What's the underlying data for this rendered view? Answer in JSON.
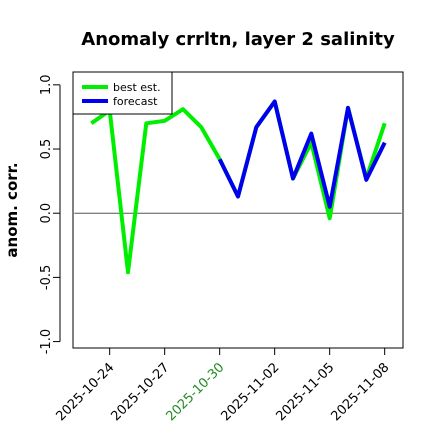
{
  "chart_data": {
    "type": "line",
    "title": "Anomaly crrltn, layer 2 salinity",
    "ylabel": "anom. corr.",
    "xlabel": "",
    "ylim": [
      -1.05,
      1.1
    ],
    "xlim": [
      "2025-10-22",
      "2025-11-09"
    ],
    "yticks": [
      "-1.0",
      "-0.5",
      "0.0",
      "0.5",
      "1.0"
    ],
    "ytick_values": [
      -1.0,
      -0.5,
      0.0,
      0.5,
      1.0
    ],
    "xticks": [
      "2025-10-24",
      "2025-10-27",
      "2025-10-30",
      "2025-11-02",
      "2025-11-05",
      "2025-11-08"
    ],
    "xtick_colors": [
      "#000000",
      "#000000",
      "#228b22",
      "#000000",
      "#000000",
      "#000000"
    ],
    "reference_line": 0.0,
    "legend": {
      "position": "top-left",
      "entries": [
        "best est.",
        "forecast"
      ]
    },
    "series": [
      {
        "name": "best est.",
        "color": "#00ee00",
        "x": [
          "2025-10-23",
          "2025-10-24",
          "2025-10-25",
          "2025-10-26",
          "2025-10-27",
          "2025-10-28",
          "2025-10-29",
          "2025-10-30",
          "2025-10-31",
          "2025-11-01",
          "2025-11-02",
          "2025-11-03",
          "2025-11-04",
          "2025-11-05",
          "2025-11-06",
          "2025-11-07",
          "2025-11-08"
        ],
        "values": [
          0.7,
          0.8,
          -0.46,
          0.7,
          0.72,
          0.81,
          0.67,
          0.42,
          0.13,
          0.67,
          0.87,
          0.27,
          0.55,
          -0.04,
          0.82,
          0.27,
          0.7
        ]
      },
      {
        "name": "forecast",
        "color": "#0000ee",
        "x": [
          "2025-10-30",
          "2025-10-31",
          "2025-11-01",
          "2025-11-02",
          "2025-11-03",
          "2025-11-04",
          "2025-11-05",
          "2025-11-06",
          "2025-11-07",
          "2025-11-08"
        ],
        "values": [
          0.42,
          0.13,
          0.67,
          0.87,
          0.27,
          0.62,
          0.05,
          0.82,
          0.26,
          0.55
        ]
      }
    ]
  }
}
